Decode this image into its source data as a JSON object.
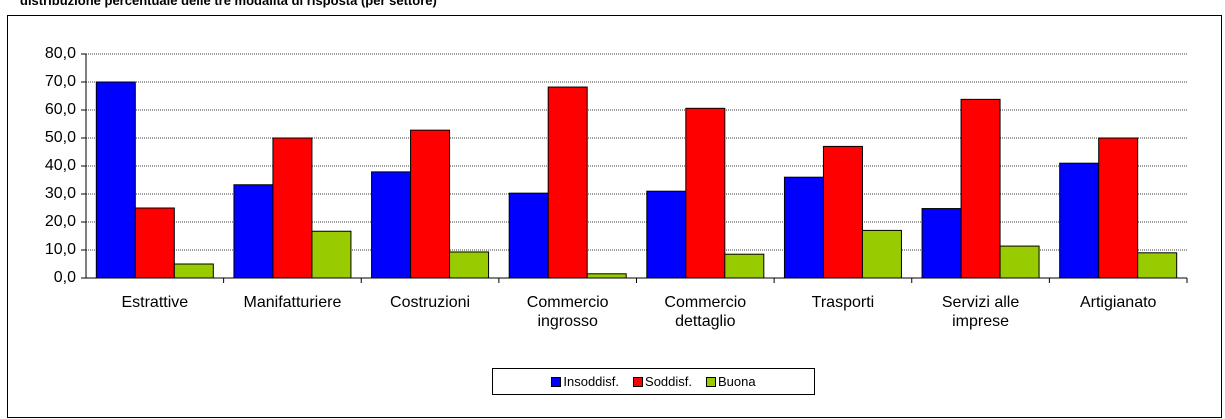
{
  "chart_data": {
    "type": "bar",
    "title": "distribuzione percentuale delle tre modalità di risposta (per settore)",
    "categories": [
      "Estrattive",
      "Manifatturiere",
      "Costruzioni",
      "Commercio ingrosso",
      "Commercio dettaglio",
      "Trasporti",
      "Servizi alle imprese",
      "Artigianato"
    ],
    "series": [
      {
        "name": "Insoddisf.",
        "color": "#0000ff",
        "values": [
          70,
          33.3,
          37.9,
          30.3,
          31,
          36,
          24.8,
          41
        ]
      },
      {
        "name": "Soddisf.",
        "color": "#ff0000",
        "values": [
          25,
          50,
          52.8,
          68.2,
          60.6,
          47,
          63.8,
          50
        ]
      },
      {
        "name": "Buona",
        "color": "#99cc00",
        "values": [
          5,
          16.7,
          9.3,
          1.5,
          8.5,
          17,
          11.4,
          9
        ]
      }
    ],
    "ylim": [
      0,
      80
    ],
    "yticks": [
      {
        "value": 0,
        "label": "0,0"
      },
      {
        "value": 10,
        "label": "10,0"
      },
      {
        "value": 20,
        "label": "20,0"
      },
      {
        "value": 30,
        "label": "30,0"
      },
      {
        "value": 40,
        "label": "40,0"
      },
      {
        "value": 50,
        "label": "50,0"
      },
      {
        "value": 60,
        "label": "60,0"
      },
      {
        "value": 70,
        "label": "70,0"
      },
      {
        "value": 80,
        "label": "80,0"
      }
    ],
    "grid": true,
    "legend": "bottom"
  }
}
